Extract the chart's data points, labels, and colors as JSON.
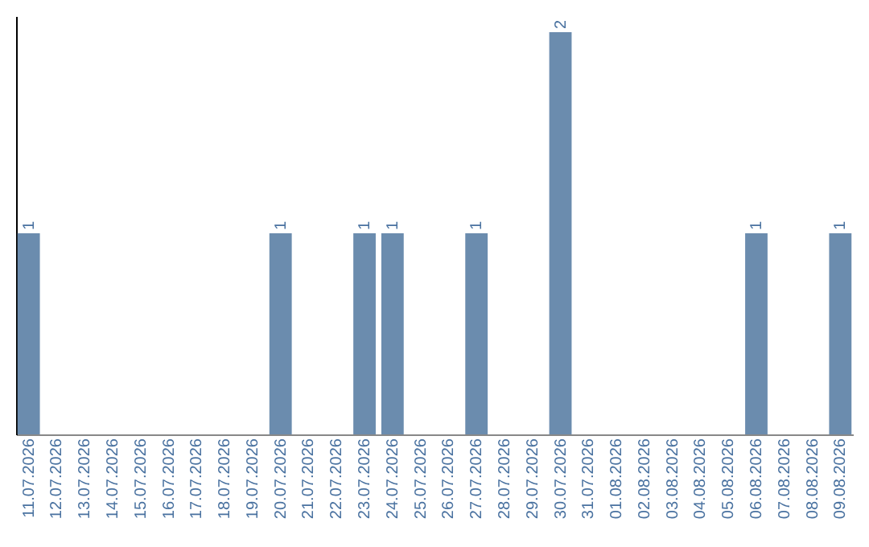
{
  "chart_data": {
    "type": "bar",
    "categories": [
      "11.07.2026",
      "12.07.2026",
      "13.07.2026",
      "14.07.2026",
      "15.07.2026",
      "16.07.2026",
      "17.07.2026",
      "18.07.2026",
      "19.07.2026",
      "20.07.2026",
      "21.07.2026",
      "22.07.2026",
      "23.07.2026",
      "24.07.2026",
      "25.07.2026",
      "26.07.2026",
      "27.07.2026",
      "28.07.2026",
      "29.07.2026",
      "30.07.2026",
      "31.07.2026",
      "01.08.2026",
      "02.08.2026",
      "03.08.2026",
      "04.08.2026",
      "05.08.2026",
      "06.08.2026",
      "07.08.2026",
      "08.08.2026",
      "09.08.2026"
    ],
    "values": [
      1,
      0,
      0,
      0,
      0,
      0,
      0,
      0,
      0,
      1,
      0,
      0,
      1,
      1,
      0,
      0,
      1,
      0,
      0,
      2,
      0,
      0,
      0,
      0,
      0,
      0,
      1,
      0,
      0,
      1
    ],
    "color": "#6b8cae",
    "ylim": [
      0,
      2.08
    ],
    "value_labels": [
      "1",
      null,
      null,
      null,
      null,
      null,
      null,
      null,
      null,
      "1",
      null,
      null,
      "1",
      "1",
      null,
      null,
      "1",
      null,
      null,
      "2",
      null,
      null,
      null,
      null,
      null,
      null,
      "1",
      null,
      null,
      "1"
    ],
    "tick_labels": "x",
    "grid": false
  }
}
